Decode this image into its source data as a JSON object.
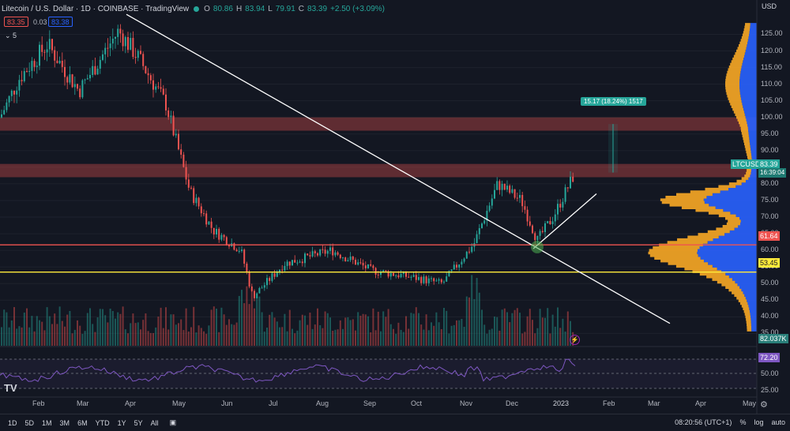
{
  "header": {
    "symbol_title": "Litecoin / U.S. Dollar · 1D · COINBASE · TradingView",
    "ohlc": [
      {
        "k": "O",
        "v": "80.86"
      },
      {
        "k": "H",
        "v": "83.94"
      },
      {
        "k": "L",
        "v": "79.91"
      },
      {
        "k": "C",
        "v": "83.39"
      }
    ],
    "change": "+2.50 (+3.09%)"
  },
  "trade": {
    "sell": "83.35",
    "spread": "0.03",
    "buy": "83.38"
  },
  "indicator_toggle": "⌄ 5",
  "currency": "USD",
  "y_ticks": [
    "125.00",
    "120.00",
    "115.00",
    "110.00",
    "105.00",
    "100.00",
    "95.00",
    "90.00",
    "85.00",
    "80.00",
    "75.00",
    "70.00",
    "65.00",
    "60.00",
    "55.00",
    "50.00",
    "45.00",
    "40.00",
    "35.00"
  ],
  "rsi_ticks": [
    "75.00",
    "50.00",
    "25.00"
  ],
  "x_ticks": [
    "Feb",
    "Mar",
    "Apr",
    "May",
    "Jun",
    "Jul",
    "Aug",
    "Sep",
    "Oct",
    "Nov",
    "Dec",
    "2023",
    "Feb",
    "Mar",
    "Apr",
    "May"
  ],
  "tags": {
    "symbol": "LTCUSD",
    "last_price": "83.39",
    "countdown": "16:39:04",
    "red_level": "61.64",
    "yellow_level": "53.45",
    "volume": "82.037K",
    "rsi": "72.20"
  },
  "measure": "15.17 (18.24%) 1517",
  "timeframes": [
    "1D",
    "5D",
    "1M",
    "3M",
    "6M",
    "YTD",
    "1Y",
    "5Y",
    "All"
  ],
  "status": {
    "time": "08:20:56 (UTC+1)",
    "pct": "%",
    "log": "log",
    "auto": "auto"
  },
  "logo": "TV",
  "colors": {
    "up": "#26a69a",
    "down": "#ef5350",
    "resistance": "#ef5350",
    "support": "#ffeb3b",
    "rsi": "#7e57c2",
    "vp_up": "#2962ff",
    "vp_down": "#f9a825"
  },
  "chart_data": {
    "type": "candlestick",
    "title": "Litecoin / U.S. Dollar · 1D · COINBASE",
    "ylabel": "USD",
    "ylim": [
      32,
      132
    ],
    "months": [
      "Feb",
      "Mar",
      "Apr",
      "May",
      "Jun",
      "Jul",
      "Aug",
      "Sep",
      "Oct",
      "Nov",
      "Dec",
      "2023"
    ],
    "monthly_close_approx": [
      110,
      120,
      118,
      100,
      50,
      52,
      58,
      56,
      54,
      55,
      78,
      83.39
    ],
    "horizontal_levels": [
      {
        "value": 61.64,
        "color": "#ef5350"
      },
      {
        "value": 53.45,
        "color": "#ffeb3b"
      }
    ],
    "resistance_zones": [
      [
        96,
        100
      ],
      [
        82,
        86
      ]
    ],
    "rsi_last": 72.2,
    "volume_last": "82.037K"
  }
}
